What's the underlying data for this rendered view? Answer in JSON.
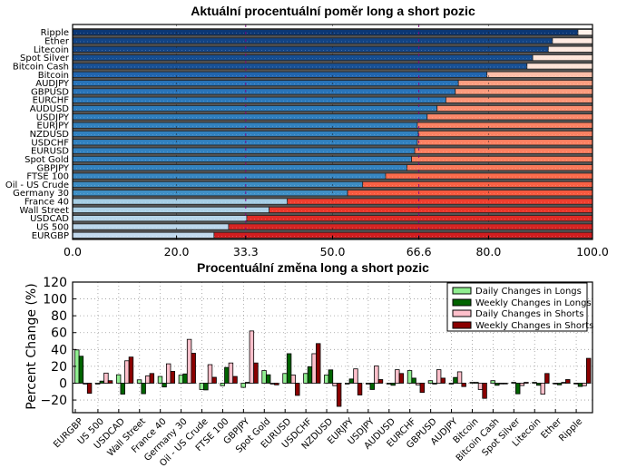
{
  "chart_data": [
    {
      "type": "bar",
      "orientation": "horizontal-stacked",
      "title": "Aktuální procentuální poměr long a short pozic",
      "xlim": [
        0,
        100
      ],
      "xticks": [
        "0.0",
        "20.0",
        "33.3",
        "50.0",
        "66.6",
        "80.0",
        "100.0"
      ],
      "xtick_values": [
        0,
        20,
        33.3,
        50,
        66.6,
        80,
        100
      ],
      "highlight_ticks": [
        "33.3",
        "66.6"
      ],
      "highlight_color": "#800080",
      "categories": [
        "Ripple",
        "Ether",
        "Litecoin",
        "Spot Silver",
        "Bitcoin Cash",
        "Bitcoin",
        "AUDJPY",
        "GBPUSD",
        "EURCHF",
        "AUDUSD",
        "USDJPY",
        "EURJPY",
        "NZDUSD",
        "USDCHF",
        "EURUSD",
        "Spot Gold",
        "GBPJPY",
        "FTSE 100",
        "Oil - US Crude",
        "Germany 30",
        "France 40",
        "Wall Street",
        "USDCAD",
        "US 500",
        "EURGBP"
      ],
      "series": [
        {
          "name": "Long",
          "values": [
            97.2,
            92.3,
            91.5,
            88.5,
            87.4,
            79.7,
            74.2,
            73.6,
            71.8,
            70.1,
            68.2,
            66.3,
            66.5,
            66.3,
            65.8,
            65.2,
            64.3,
            60.2,
            55.8,
            52.9,
            41.3,
            37.8,
            33.5,
            30.0,
            27.2
          ]
        },
        {
          "name": "Short",
          "values": [
            2.8,
            7.7,
            8.5,
            11.5,
            12.6,
            20.3,
            25.8,
            26.4,
            28.2,
            29.9,
            31.8,
            33.7,
            33.5,
            33.7,
            34.2,
            34.8,
            35.7,
            39.8,
            44.2,
            47.1,
            58.7,
            62.2,
            66.5,
            70.0,
            72.8
          ]
        }
      ],
      "grid": true
    },
    {
      "type": "bar",
      "orientation": "vertical-grouped",
      "title": "Procentuální změna long a short pozic",
      "xlabel": "",
      "ylabel": "Percent Change (%)",
      "ylim": [
        -35,
        120
      ],
      "yticks": [
        "120",
        "100",
        "80",
        "60",
        "40",
        "20",
        "0",
        "−20"
      ],
      "ytick_values": [
        120,
        100,
        80,
        60,
        40,
        20,
        0,
        -20
      ],
      "legend_position": "top-right",
      "categories": [
        "EURGBP",
        "US 500",
        "USDCAD",
        "Wall Street",
        "France 40",
        "Germany 30",
        "Oil - US Crude",
        "FTSE 100",
        "GBPJPY",
        "Spot Gold",
        "EURUSD",
        "USDCHF",
        "NZDUSD",
        "EURJPY",
        "USDJPY",
        "AUDUSD",
        "EURCHF",
        "GBPUSD",
        "AUDJPY",
        "Bitcoin",
        "Bitcoin Cash",
        "Spot Silver",
        "Litecoin",
        "Ether",
        "Ripple"
      ],
      "series": [
        {
          "name": "Daily Changes in Longs",
          "color": "#90ee90",
          "values": [
            39.5,
            -1,
            10,
            4,
            8,
            9.5,
            -7.5,
            -3,
            -5,
            15,
            11.5,
            11.5,
            9.7,
            -1,
            -1,
            -1,
            15,
            3,
            -1,
            1,
            3,
            1,
            1,
            0,
            0
          ]
        },
        {
          "name": "Weekly Changes in Longs",
          "color": "#006400",
          "values": [
            32,
            2.5,
            -13,
            -12.5,
            -4.5,
            11,
            -8,
            18.7,
            1,
            10,
            35,
            19.5,
            15.8,
            5,
            -7.5,
            -2.5,
            6,
            -1,
            6.8,
            1,
            -2.5,
            -12.6,
            -2.5,
            -2,
            -3.9
          ]
        },
        {
          "name": "Daily Changes in Shorts",
          "color": "#ffc0cb",
          "values": [
            -1,
            12,
            26.6,
            8.6,
            23,
            52,
            22,
            24,
            62,
            -1,
            9.7,
            35,
            -3,
            17,
            20.5,
            16,
            -2,
            16,
            13.5,
            -7.5,
            0,
            -2.8,
            -13,
            1,
            -3
          ]
        },
        {
          "name": "Weekly Changes in Shorts",
          "color": "#8b0000",
          "values": [
            -12,
            3,
            31,
            11.5,
            14,
            35.5,
            7,
            8,
            24,
            -2,
            -14.5,
            47,
            -27.5,
            -14,
            4.3,
            11.5,
            -11,
            6,
            -4,
            -18,
            0,
            1,
            11.5,
            4.3,
            29.5
          ]
        }
      ],
      "grid": true
    }
  ]
}
